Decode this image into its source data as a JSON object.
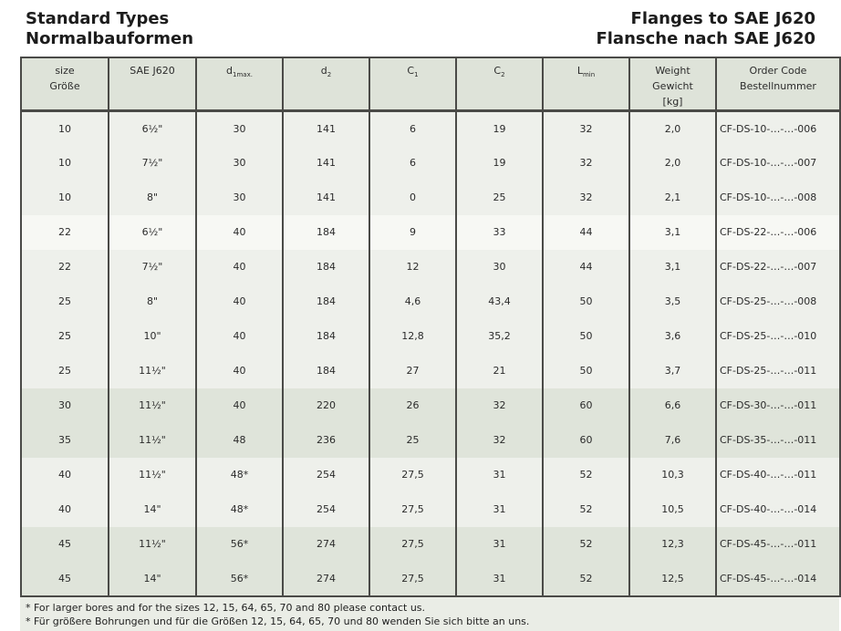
{
  "header": {
    "title_left": [
      "Standard Types",
      "Normalbauformen"
    ],
    "title_right": [
      "Flanges to SAE J620",
      "Flansche nach SAE J620"
    ]
  },
  "table": {
    "columns": [
      {
        "id": "size",
        "label_lines": [
          "size",
          "Größe"
        ]
      },
      {
        "id": "sae-j620",
        "label_lines": [
          "SAE J620"
        ]
      },
      {
        "id": "d1max",
        "base": "d",
        "sub": "1max."
      },
      {
        "id": "d2",
        "base": "d",
        "sub": "2"
      },
      {
        "id": "c1",
        "base": "C",
        "sub": "1"
      },
      {
        "id": "c2",
        "base": "C",
        "sub": "2"
      },
      {
        "id": "lmin",
        "base": "L",
        "sub": "min"
      },
      {
        "id": "weight",
        "label_lines": [
          "Weight",
          "Gewicht",
          "[kg]"
        ]
      },
      {
        "id": "order-code",
        "label_lines": [
          "Order Code",
          "Bestellnummer"
        ]
      }
    ],
    "rows": [
      {
        "shade": "light",
        "cells": [
          "10",
          "6½\"",
          "30",
          "141",
          "6",
          "19",
          "32",
          "2,0",
          "CF-DS-10-…-…-006"
        ]
      },
      {
        "shade": "light",
        "cells": [
          "10",
          "7½\"",
          "30",
          "141",
          "6",
          "19",
          "32",
          "2,0",
          "CF-DS-10-…-…-007"
        ]
      },
      {
        "shade": "light",
        "cells": [
          "10",
          "8\"",
          "30",
          "141",
          "0",
          "25",
          "32",
          "2,1",
          "CF-DS-10-…-…-008"
        ]
      },
      {
        "shade": "white",
        "cells": [
          "22",
          "6½\"",
          "40",
          "184",
          "9",
          "33",
          "44",
          "3,1",
          "CF-DS-22-…-…-006"
        ]
      },
      {
        "shade": "light",
        "cells": [
          "22",
          "7½\"",
          "40",
          "184",
          "12",
          "30",
          "44",
          "3,1",
          "CF-DS-22-…-…-007"
        ]
      },
      {
        "shade": "light",
        "cells": [
          "25",
          "8\"",
          "40",
          "184",
          "4,6",
          "43,4",
          "50",
          "3,5",
          "CF-DS-25-…-…-008"
        ]
      },
      {
        "shade": "light",
        "cells": [
          "25",
          "10\"",
          "40",
          "184",
          "12,8",
          "35,2",
          "50",
          "3,6",
          "CF-DS-25-…-…-010"
        ]
      },
      {
        "shade": "light",
        "cells": [
          "25",
          "11½\"",
          "40",
          "184",
          "27",
          "21",
          "50",
          "3,7",
          "CF-DS-25-…-…-011"
        ]
      },
      {
        "shade": "dark",
        "cells": [
          "30",
          "11½\"",
          "40",
          "220",
          "26",
          "32",
          "60",
          "6,6",
          "CF-DS-30-…-…-011"
        ]
      },
      {
        "shade": "dark",
        "cells": [
          "35",
          "11½\"",
          "48",
          "236",
          "25",
          "32",
          "60",
          "7,6",
          "CF-DS-35-…-…-011"
        ]
      },
      {
        "shade": "light",
        "cells": [
          "40",
          "11½\"",
          "48*",
          "254",
          "27,5",
          "31",
          "52",
          "10,3",
          "CF-DS-40-…-…-011"
        ]
      },
      {
        "shade": "light",
        "cells": [
          "40",
          "14\"",
          "48*",
          "254",
          "27,5",
          "31",
          "52",
          "10,5",
          "CF-DS-40-…-…-014"
        ]
      },
      {
        "shade": "dark",
        "cells": [
          "45",
          "11½\"",
          "56*",
          "274",
          "27,5",
          "31",
          "52",
          "12,3",
          "CF-DS-45-…-…-011"
        ]
      },
      {
        "shade": "dark",
        "cells": [
          "45",
          "14\"",
          "56*",
          "274",
          "27,5",
          "31",
          "52",
          "12,5",
          "CF-DS-45-…-…-014"
        ]
      }
    ]
  },
  "footnotes": [
    "* For larger bores and for the sizes 12, 15, 64, 65, 70 and 80 please contact us.",
    "* Für größere Bohrungen und für die Größen 12, 15, 64, 65, 70 und 80 wenden Sie sich bitte an uns."
  ],
  "colors": {
    "header_row_bg": "#dee3d9",
    "row_light_bg": "#eef0eb",
    "row_white_bg": "#f7f8f4",
    "row_dark_bg": "#dfe4da",
    "footnote_bg": "#eaede6",
    "table_border": "#4a4a47",
    "title_text": "#1c1c1c",
    "cell_text": "#2b2b2b"
  }
}
